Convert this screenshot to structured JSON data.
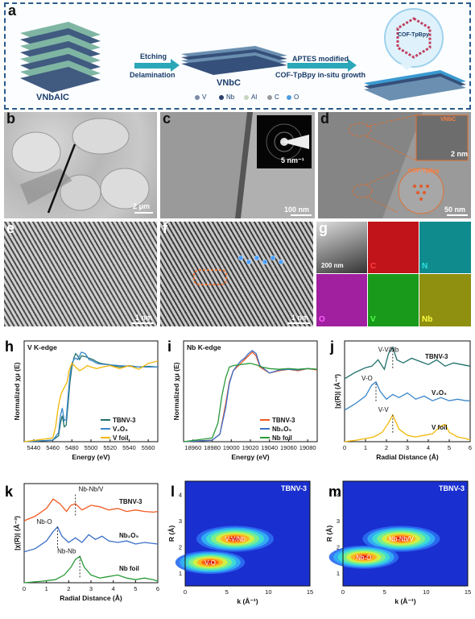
{
  "panel_a": {
    "letter": "a",
    "vnbalc": "VNbAlC",
    "step1_top": "Etching",
    "step1_bottom": "Delamination",
    "vnbc": "VNbC",
    "step2_top": "APTES modified",
    "step2_bottom": "COF-TpBpy in-situ growth",
    "cof_label": "COF-TpBpy",
    "legend": [
      {
        "label": "V",
        "color": "#7a8ba8"
      },
      {
        "label": "Nb",
        "color": "#2c3e6b"
      },
      {
        "label": "Al",
        "color": "#c8d6c0"
      },
      {
        "label": "C",
        "color": "#9a9a9a"
      },
      {
        "label": "O",
        "color": "#4d9de0"
      }
    ]
  },
  "panel_b": {
    "letter": "b",
    "scale": "2 μm"
  },
  "panel_c": {
    "letter": "c",
    "scale": "100 nm",
    "inset_scale": "5 nm⁻¹"
  },
  "panel_d": {
    "letter": "d",
    "scale": "50 nm",
    "inset_scale": "2 nm",
    "vnbc_tag": "VNbC",
    "cof_tag": "COF-TpBpy"
  },
  "panel_e": {
    "letter": "e",
    "scale": "1 nm"
  },
  "panel_f": {
    "letter": "f",
    "scale": "1 nm"
  },
  "panel_g": {
    "letter": "g",
    "scale": "200 nm",
    "maps": [
      {
        "label": "C",
        "color": "#c0141a",
        "text": "#ff4040"
      },
      {
        "label": "N",
        "color": "#0f8b8e",
        "text": "#2fe0e0"
      },
      {
        "label": "O",
        "color": "#a020a0",
        "text": "#ff60ff"
      },
      {
        "label": "V",
        "color": "#1a9a1a",
        "text": "#50ff50"
      },
      {
        "label": "Nb",
        "color": "#8f8f10",
        "text": "#ffff40"
      }
    ]
  },
  "chart_data": [
    {
      "panel": "h",
      "type": "line",
      "title": "V K-edge",
      "xlabel": "Energy (eV)",
      "ylabel": "Normalized χμ (E)",
      "xlim": [
        5430,
        5570
      ],
      "xticks": [
        5440,
        5460,
        5480,
        5500,
        5520,
        5540,
        5560
      ],
      "series": [
        {
          "name": "TBNV-3",
          "color": "#1f6f6a",
          "x": [
            5430,
            5460,
            5466,
            5468,
            5470,
            5472,
            5474,
            5476,
            5478,
            5480,
            5482,
            5484,
            5486,
            5488,
            5490,
            5494,
            5498,
            5502,
            5506,
            5510,
            5520,
            5530,
            5540,
            5550,
            5560,
            5570
          ],
          "y": [
            0,
            0.02,
            0.08,
            0.25,
            0.35,
            0.2,
            0.22,
            0.5,
            0.8,
            1.0,
            1.12,
            1.18,
            1.15,
            1.1,
            1.15,
            1.14,
            1.12,
            1.1,
            1.07,
            1.05,
            1.03,
            1.0,
            1.02,
            1.0,
            1.01,
            1.0
          ]
        },
        {
          "name": "V₂O₅",
          "color": "#3a86c8",
          "x": [
            5430,
            5460,
            5466,
            5468,
            5470,
            5472,
            5474,
            5476,
            5478,
            5480,
            5482,
            5484,
            5486,
            5488,
            5490,
            5494,
            5498,
            5502,
            5506,
            5510,
            5520,
            5530,
            5540,
            5550,
            5560,
            5570
          ],
          "y": [
            0,
            0.02,
            0.12,
            0.35,
            0.45,
            0.28,
            0.3,
            0.6,
            0.9,
            1.05,
            1.1,
            1.12,
            1.1,
            1.15,
            1.2,
            1.18,
            1.1,
            1.08,
            1.05,
            1.04,
            1.03,
            1.02,
            1.01,
            1.0,
            1.0,
            1.0
          ]
        },
        {
          "name": "V foil",
          "color": "#f2b705",
          "x": [
            5430,
            5460,
            5463,
            5465,
            5467,
            5469,
            5471,
            5473,
            5475,
            5477,
            5480,
            5484,
            5488,
            5492,
            5496,
            5500,
            5506,
            5512,
            5520,
            5530,
            5540,
            5550,
            5560,
            5570
          ],
          "y": [
            0,
            0.05,
            0.2,
            0.4,
            0.55,
            0.65,
            0.7,
            0.75,
            0.8,
            0.95,
            1.05,
            1.0,
            0.95,
            0.98,
            1.02,
            1.0,
            0.98,
            1.0,
            1.02,
            0.98,
            1.02,
            0.97,
            1.05,
            1.08
          ]
        }
      ]
    },
    {
      "panel": "i",
      "type": "line",
      "title": "Nb K-edge",
      "xlabel": "Energy (eV)",
      "ylabel": "Normalized χμ (E)",
      "xlim": [
        18950,
        19090
      ],
      "xticks": [
        18960,
        18980,
        19000,
        19020,
        19040,
        19060,
        19080
      ],
      "series": [
        {
          "name": "TBNV-3",
          "color": "#f05a22",
          "x": [
            18950,
            18980,
            18988,
            18994,
            18998,
            19002,
            19006,
            19010,
            19014,
            19018,
            19022,
            19026,
            19030,
            19040,
            19050,
            19060,
            19070,
            19080,
            19090
          ],
          "y": [
            0,
            0.02,
            0.1,
            0.5,
            0.8,
            0.95,
            1.0,
            1.05,
            1.1,
            1.15,
            1.2,
            1.15,
            1.0,
            0.92,
            0.95,
            0.97,
            0.95,
            0.98,
            0.96
          ]
        },
        {
          "name": "Nb₂O₅",
          "color": "#3a6fc8",
          "x": [
            18950,
            18980,
            18988,
            18994,
            18998,
            19002,
            19006,
            19010,
            19014,
            19018,
            19022,
            19026,
            19030,
            19040,
            19050,
            19060,
            19070,
            19080,
            19090
          ],
          "y": [
            0,
            0.02,
            0.1,
            0.45,
            0.78,
            0.95,
            1.02,
            1.08,
            1.12,
            1.18,
            1.22,
            1.18,
            1.02,
            0.92,
            0.96,
            0.97,
            0.96,
            0.98,
            0.97
          ]
        },
        {
          "name": "Nb foil",
          "color": "#2a9a3a",
          "x": [
            18950,
            18980,
            18986,
            18990,
            18994,
            18998,
            19002,
            19008,
            19014,
            19020,
            19026,
            19032,
            19040,
            19050,
            19060,
            19070,
            19080,
            19090
          ],
          "y": [
            0,
            0.05,
            0.25,
            0.6,
            0.85,
            1.0,
            1.02,
            1.03,
            1.04,
            1.05,
            1.03,
            1.0,
            0.98,
            0.97,
            0.98,
            0.97,
            0.98,
            0.97
          ]
        }
      ]
    },
    {
      "panel": "j",
      "type": "line",
      "xlabel": "Radial Distance (Å)",
      "ylabel": "|χ(R)| (Å⁻³)",
      "xlim": [
        0,
        6
      ],
      "xticks": [
        0,
        1,
        2,
        3,
        4,
        5,
        6
      ],
      "annotations": [
        "V-V/Nb",
        "V-O",
        "V-V"
      ],
      "series": [
        {
          "name": "TBNV-3",
          "color": "#1f6f6a",
          "offset": 2.0,
          "x": [
            0,
            0.5,
            1.0,
            1.3,
            1.6,
            1.9,
            2.1,
            2.3,
            2.5,
            2.8,
            3.2,
            3.6,
            4.0,
            4.4,
            4.8,
            5.2,
            5.6,
            6.0
          ],
          "y": [
            0,
            0.2,
            0.35,
            0.4,
            0.6,
            0.3,
            0.8,
            1.0,
            0.6,
            0.5,
            0.65,
            0.55,
            0.45,
            0.6,
            0.4,
            0.5,
            0.45,
            0.4
          ]
        },
        {
          "name": "V₂O₅",
          "color": "#3a86c8",
          "offset": 1.0,
          "x": [
            0,
            0.5,
            1.0,
            1.3,
            1.5,
            1.7,
            2.0,
            2.3,
            2.6,
            3.0,
            3.4,
            3.8,
            4.2,
            4.6,
            5.0,
            5.4,
            5.8,
            6.0
          ],
          "y": [
            0,
            0.2,
            0.45,
            0.8,
            0.9,
            0.6,
            0.35,
            0.5,
            0.4,
            0.55,
            0.35,
            0.45,
            0.3,
            0.4,
            0.3,
            0.35,
            0.3,
            0.3
          ]
        },
        {
          "name": "V foil",
          "color": "#f2b705",
          "offset": 0,
          "x": [
            0,
            0.6,
            1.0,
            1.4,
            1.8,
            2.1,
            2.3,
            2.6,
            3.0,
            3.4,
            3.8,
            4.2,
            4.6,
            4.8,
            5.0,
            5.4,
            5.8,
            6.0
          ],
          "y": [
            0,
            0.05,
            0.1,
            0.15,
            0.3,
            0.6,
            0.85,
            0.4,
            0.2,
            0.15,
            0.2,
            0.25,
            0.5,
            0.55,
            0.3,
            0.15,
            0.1,
            0.05
          ]
        }
      ]
    },
    {
      "panel": "k",
      "type": "line",
      "xlabel": "Radial Distance (Å)",
      "ylabel": "|χ(R)| (Å⁻³)",
      "xlim": [
        0,
        6
      ],
      "xticks": [
        0,
        1,
        2,
        3,
        4,
        5,
        6
      ],
      "annotations": [
        "Nb-Nb/V",
        "Nb-O",
        "Nb-Nb"
      ],
      "series": [
        {
          "name": "TBNV-3",
          "color": "#f05a22",
          "offset": 2.0,
          "x": [
            0,
            0.5,
            1.0,
            1.3,
            1.6,
            1.9,
            2.1,
            2.3,
            2.6,
            3.0,
            3.4,
            3.8,
            4.2,
            4.6,
            5.0,
            5.4,
            5.8,
            6.0
          ],
          "y": [
            0,
            0.15,
            0.4,
            0.7,
            0.55,
            0.3,
            0.5,
            0.55,
            0.35,
            0.5,
            0.45,
            0.35,
            0.4,
            0.3,
            0.35,
            0.3,
            0.28,
            0.3
          ]
        },
        {
          "name": "Nb₂O₅",
          "color": "#3a6fc8",
          "offset": 1.0,
          "x": [
            0,
            0.5,
            1.0,
            1.3,
            1.5,
            1.7,
            2.0,
            2.3,
            2.6,
            2.9,
            3.2,
            3.5,
            3.8,
            4.2,
            4.6,
            5.0,
            5.4,
            6.0
          ],
          "y": [
            0,
            0.1,
            0.35,
            0.65,
            0.8,
            0.5,
            0.3,
            0.45,
            0.3,
            0.55,
            0.4,
            0.5,
            0.35,
            0.3,
            0.35,
            0.25,
            0.3,
            0.25
          ]
        },
        {
          "name": "Nb foil",
          "color": "#2a9a3a",
          "offset": 0,
          "x": [
            0,
            0.8,
            1.4,
            1.8,
            2.1,
            2.3,
            2.5,
            2.7,
            3.0,
            3.4,
            3.8,
            4.2,
            4.6,
            5.0,
            5.4,
            5.8,
            6.0
          ],
          "y": [
            0,
            0.05,
            0.1,
            0.25,
            0.5,
            0.75,
            0.85,
            0.5,
            0.25,
            0.15,
            0.2,
            0.25,
            0.15,
            0.1,
            0.15,
            0.1,
            0.05
          ]
        }
      ]
    },
    {
      "panel": "l",
      "type": "heatmap",
      "title": "TBNV-3",
      "xlabel": "k (Å⁻¹)",
      "ylabel": "R (Å)",
      "xlim": [
        0,
        15
      ],
      "ylim": [
        0.5,
        4.5
      ],
      "xticks": [
        0,
        5,
        10,
        15
      ],
      "yticks": [
        1,
        2,
        3,
        4
      ],
      "peaks": [
        {
          "label": "V-V/Nb",
          "k": 6,
          "R": 2.3
        },
        {
          "label": "V-O",
          "k": 3,
          "R": 1.4
        }
      ]
    },
    {
      "panel": "m",
      "type": "heatmap",
      "title": "TBNV-3",
      "xlabel": "k (Å⁻¹)",
      "ylabel": "R (Å)",
      "xlim": [
        0,
        15
      ],
      "ylim": [
        0.5,
        4.5
      ],
      "xticks": [
        0,
        5,
        10,
        15
      ],
      "yticks": [
        1,
        2,
        3,
        4
      ],
      "peaks": [
        {
          "label": "Nb-Nb/V",
          "k": 7,
          "R": 2.3
        },
        {
          "label": "Nb-O",
          "k": 2.5,
          "R": 1.6
        }
      ]
    }
  ]
}
